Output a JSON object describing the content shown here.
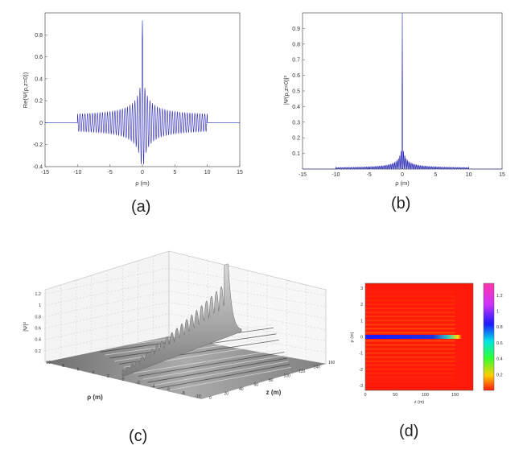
{
  "captions": {
    "a": "(a)",
    "b": "(b)",
    "c": "(c)",
    "d": "(d)"
  },
  "colors": {
    "trace": "#2b2bb4",
    "bg_d": "#ff1a0a",
    "surface": "#9a9a9a"
  },
  "chart_data": [
    {
      "id": "a",
      "type": "line",
      "ylabel": "Re(Ψ(ρ,z=0))",
      "xlabel": "ρ (m)",
      "xlim": [
        -15,
        15
      ],
      "ylim": [
        -0.4,
        1.0
      ],
      "xticks": [
        "-15",
        "-10",
        "-5",
        "0",
        "5",
        "10",
        "15"
      ],
      "yticks": [
        "-0.4",
        "-0.2",
        "0",
        "0.2",
        "0.4",
        "0.6",
        "0.8"
      ],
      "peak": 0.93,
      "support": [
        -10,
        10
      ]
    },
    {
      "id": "b",
      "type": "line",
      "ylabel": "|Ψ(ρ,z=0)|²",
      "xlabel": "ρ (m)",
      "xlim": [
        -15,
        15
      ],
      "ylim": [
        0,
        1.0
      ],
      "xticks": [
        "-15",
        "-10",
        "-5",
        "0",
        "5",
        "10",
        "15"
      ],
      "yticks": [
        "0.1",
        "0.2",
        "0.3",
        "0.4",
        "0.5",
        "0.6",
        "0.7",
        "0.8",
        "0.9"
      ],
      "peak": 1.0
    },
    {
      "id": "c",
      "type": "area",
      "zlabel": "|Ψ|²",
      "xlabel": "ρ (m)",
      "ylabel": "z (m)",
      "zticks": [
        "0.2",
        "0.4",
        "0.6",
        "0.8",
        "1",
        "1.2"
      ],
      "rhoticks": [
        "10",
        "8",
        "6",
        "4",
        "2",
        "0",
        "-2",
        "-4",
        "-6",
        "-8",
        "-10"
      ],
      "zaxis_ticks": [
        "0",
        "20",
        "40",
        "60",
        "80",
        "100",
        "120",
        "140",
        "160"
      ],
      "peak": 1.28,
      "peak_z": 160
    },
    {
      "id": "d",
      "type": "heatmap",
      "xlabel": "z (m)",
      "ylabel": "ρ (m)",
      "xticks": [
        "0",
        "50",
        "100",
        "150"
      ],
      "yticks": [
        "3",
        "2",
        "1",
        "0",
        "-1",
        "-2",
        "-3"
      ],
      "colorbar_ticks": [
        "1.2",
        "1",
        "0.8",
        "0.6",
        "0.4",
        "0.2"
      ],
      "xlim": [
        0,
        180
      ],
      "ylim": [
        -3.3,
        3.3
      ],
      "clim": [
        0,
        1.35
      ]
    }
  ]
}
